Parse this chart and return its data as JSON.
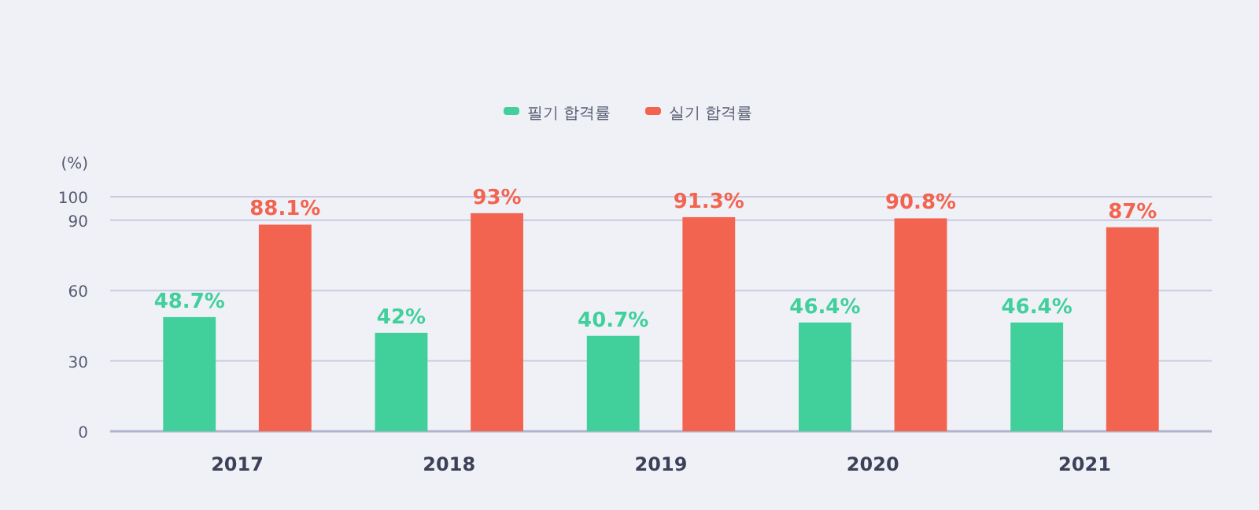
{
  "chart_data": {
    "type": "bar",
    "ylabel": "(%)",
    "categories": [
      "2017",
      "2018",
      "2019",
      "2020",
      "2021"
    ],
    "series": [
      {
        "name": "필기 합격률",
        "color": "#41d09c",
        "values": [
          48.7,
          42,
          40.7,
          46.4,
          46.4
        ],
        "value_labels": [
          "48.7%",
          "42%",
          "40.7%",
          "46.4%",
          "46.4%"
        ]
      },
      {
        "name": "실기 합격률",
        "color": "#f26450",
        "values": [
          88.1,
          93,
          91.3,
          90.8,
          87
        ],
        "value_labels": [
          "88.1%",
          "93%",
          "91.3%",
          "90.8%",
          "87%"
        ]
      }
    ],
    "ylim": [
      0,
      100
    ],
    "yticks": [
      0,
      30,
      60,
      90,
      100
    ],
    "grid": "y",
    "legend": "top"
  }
}
